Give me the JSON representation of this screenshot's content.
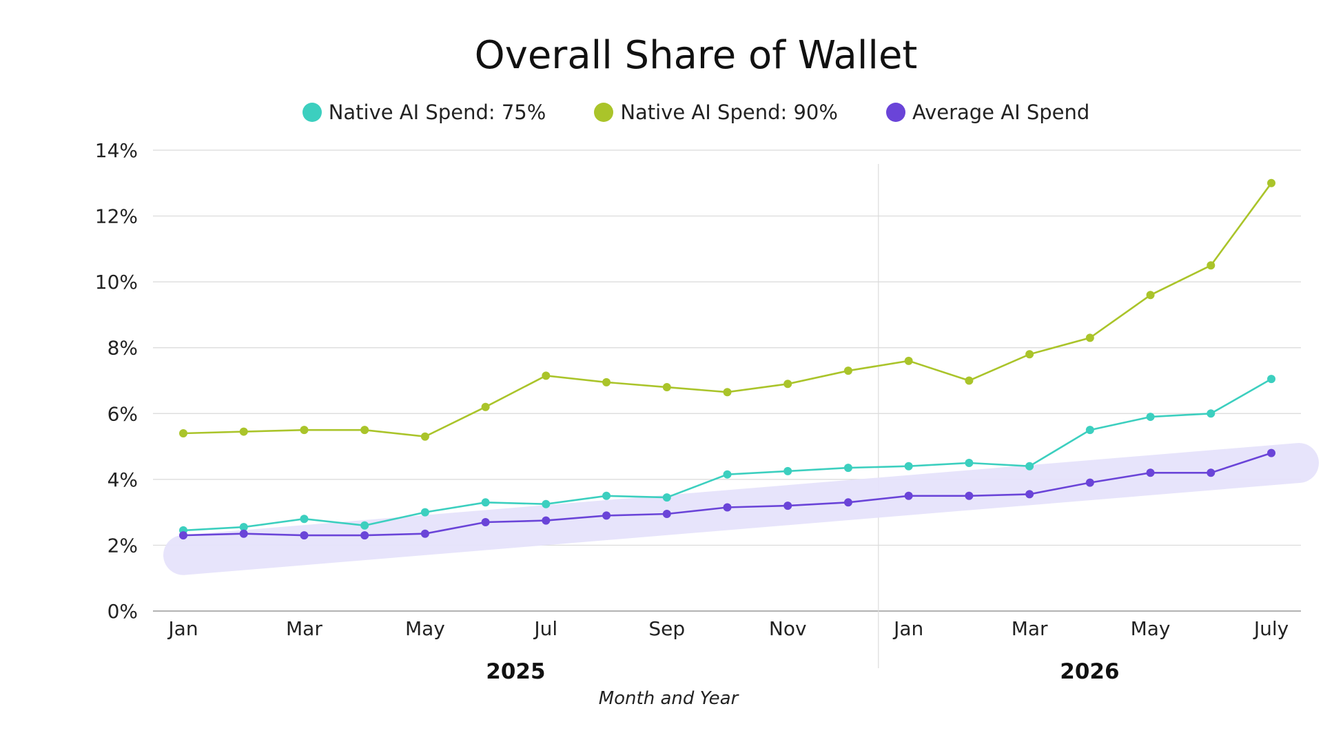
{
  "chart_data": {
    "type": "line",
    "title": "Overall Share of Wallet",
    "xlabel": "Month and Year",
    "ylabel": "",
    "ylim": [
      0,
      14
    ],
    "yticks": [
      0,
      2,
      4,
      6,
      8,
      10,
      12,
      14
    ],
    "ytick_labels": [
      "0%",
      "2%",
      "4%",
      "6%",
      "8%",
      "10%",
      "12%",
      "14%"
    ],
    "x": [
      "Jan 2025",
      "Feb 2025",
      "Mar 2025",
      "Apr 2025",
      "May 2025",
      "Jun 2025",
      "Jul 2025",
      "Aug 2025",
      "Sep 2025",
      "Oct 2025",
      "Nov 2025",
      "Dec 2025",
      "Jan 2026",
      "Feb 2026",
      "Mar 2026",
      "Apr 2026",
      "May 2026",
      "Jun 2026",
      "Jul 2026"
    ],
    "xtick_labels": [
      {
        "index": 0,
        "label": "Jan"
      },
      {
        "index": 2,
        "label": "Mar"
      },
      {
        "index": 4,
        "label": "May"
      },
      {
        "index": 6,
        "label": "Jul"
      },
      {
        "index": 8,
        "label": "Sep"
      },
      {
        "index": 10,
        "label": "Nov"
      },
      {
        "index": 12,
        "label": "Jan"
      },
      {
        "index": 14,
        "label": "Mar"
      },
      {
        "index": 16,
        "label": "May"
      },
      {
        "index": 18,
        "label": "July"
      }
    ],
    "groups": [
      {
        "label": "2025",
        "start": 0,
        "end": 11
      },
      {
        "label": "2026",
        "start": 12,
        "end": 18
      }
    ],
    "legend_position": "top",
    "grid": true,
    "series": [
      {
        "name": "Native AI Spend: 75%",
        "color": "#3ccfbf",
        "values": [
          2.45,
          2.55,
          2.8,
          2.6,
          3.0,
          3.3,
          3.25,
          3.5,
          3.45,
          4.15,
          4.25,
          4.35,
          4.4,
          4.5,
          4.4,
          5.5,
          5.9,
          6.0,
          7.05
        ]
      },
      {
        "name": "Native AI Spend: 90%",
        "color": "#aac42a",
        "values": [
          5.4,
          5.45,
          5.5,
          5.5,
          5.3,
          6.2,
          7.15,
          6.95,
          6.8,
          6.65,
          6.9,
          7.3,
          7.6,
          7.0,
          7.8,
          8.3,
          9.6,
          10.5,
          13.0
        ]
      },
      {
        "name": "Average AI Spend",
        "color": "#6a44d8",
        "values": [
          2.3,
          2.35,
          2.3,
          2.3,
          2.35,
          2.7,
          2.75,
          2.9,
          2.95,
          3.15,
          3.2,
          3.3,
          3.5,
          3.5,
          3.55,
          3.9,
          4.2,
          4.2,
          4.8
        ]
      }
    ],
    "trend_band": {
      "color": "#e6e3fb",
      "from_value": 1.7,
      "to_value": 4.5
    }
  }
}
